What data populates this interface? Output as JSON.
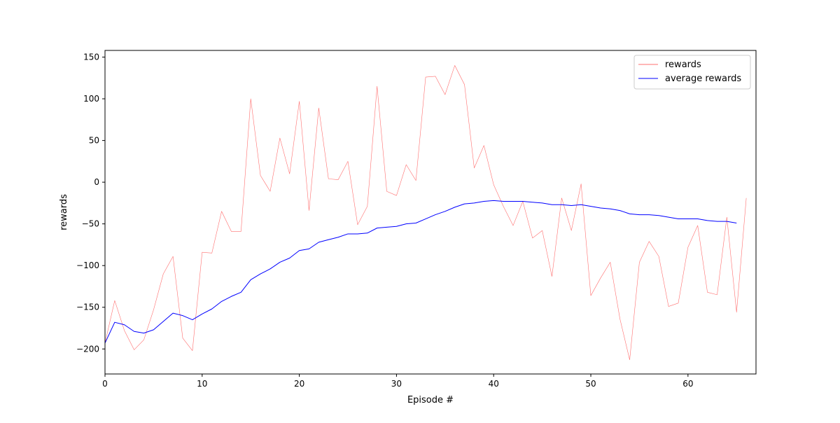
{
  "chart_data": {
    "type": "line",
    "title": "",
    "xlabel": "Episode #",
    "ylabel": "rewards",
    "xlim": [
      0,
      67
    ],
    "ylim": [
      -230,
      158
    ],
    "xticks": [
      0,
      10,
      20,
      30,
      40,
      50,
      60
    ],
    "yticks": [
      -200,
      -150,
      -100,
      -50,
      0,
      50,
      100,
      150
    ],
    "grid": false,
    "legend": "top-right",
    "series": [
      {
        "name": "rewards",
        "color": "#ff6f6f",
        "x": [
          0,
          1,
          2,
          3,
          4,
          5,
          6,
          7,
          8,
          9,
          10,
          11,
          12,
          13,
          14,
          15,
          16,
          17,
          18,
          19,
          20,
          21,
          22,
          23,
          24,
          25,
          26,
          27,
          28,
          29,
          30,
          31,
          32,
          33,
          34,
          35,
          36,
          37,
          38,
          39,
          40,
          41,
          42,
          43,
          44,
          45,
          46,
          47,
          48,
          49,
          50,
          51,
          52,
          53,
          54,
          55,
          56,
          57,
          58,
          59,
          60,
          61,
          62,
          63,
          64,
          65,
          66
        ],
        "y": [
          -193,
          -142,
          -178,
          -201,
          -189,
          -153,
          -110,
          -89,
          -187,
          -202,
          -84,
          -85,
          -35,
          -59,
          -59,
          100,
          8,
          -11,
          53,
          10,
          97,
          -34,
          89,
          4,
          3,
          25,
          -51,
          -29,
          115,
          -11,
          -16,
          21,
          2,
          126,
          127,
          105,
          140,
          117,
          17,
          44,
          -3,
          -29,
          -52,
          -23,
          -67,
          -58,
          -113,
          -19,
          -58,
          -2,
          -136,
          -115,
          -96,
          -164,
          -213,
          -96,
          -71,
          -89,
          -149,
          -145,
          -78,
          -52,
          -132,
          -135,
          -42,
          -156,
          -19
        ]
      },
      {
        "name": "average rewards",
        "color": "#0000ff",
        "x": [
          0,
          1,
          2,
          3,
          4,
          5,
          6,
          7,
          8,
          9,
          10,
          11,
          12,
          13,
          14,
          15,
          16,
          17,
          18,
          19,
          20,
          21,
          22,
          23,
          24,
          25,
          26,
          27,
          28,
          29,
          30,
          31,
          32,
          33,
          34,
          35,
          36,
          37,
          38,
          39,
          40,
          41,
          42,
          43,
          44,
          45,
          46,
          47,
          48,
          49,
          50,
          51,
          52,
          53,
          54,
          55,
          56,
          57,
          58,
          59,
          60,
          61,
          62,
          63,
          64,
          65
        ],
        "y": [
          -193,
          -168,
          -171,
          -179,
          -181,
          -177,
          -167,
          -157,
          -160,
          -165,
          -158,
          -152,
          -143,
          -137,
          -132,
          -117,
          -110,
          -104,
          -96,
          -91,
          -82,
          -80,
          -72,
          -69,
          -66,
          -62,
          -62,
          -61,
          -55,
          -54,
          -53,
          -50,
          -49,
          -44,
          -39,
          -35,
          -30,
          -26,
          -25,
          -23,
          -22,
          -23,
          -23,
          -23,
          -24,
          -25,
          -27,
          -27,
          -28,
          -27,
          -29,
          -31,
          -32,
          -34,
          -38,
          -39,
          -39,
          -40,
          -42,
          -44,
          -44,
          -44,
          -46,
          -47,
          -47,
          -49
        ]
      }
    ]
  }
}
